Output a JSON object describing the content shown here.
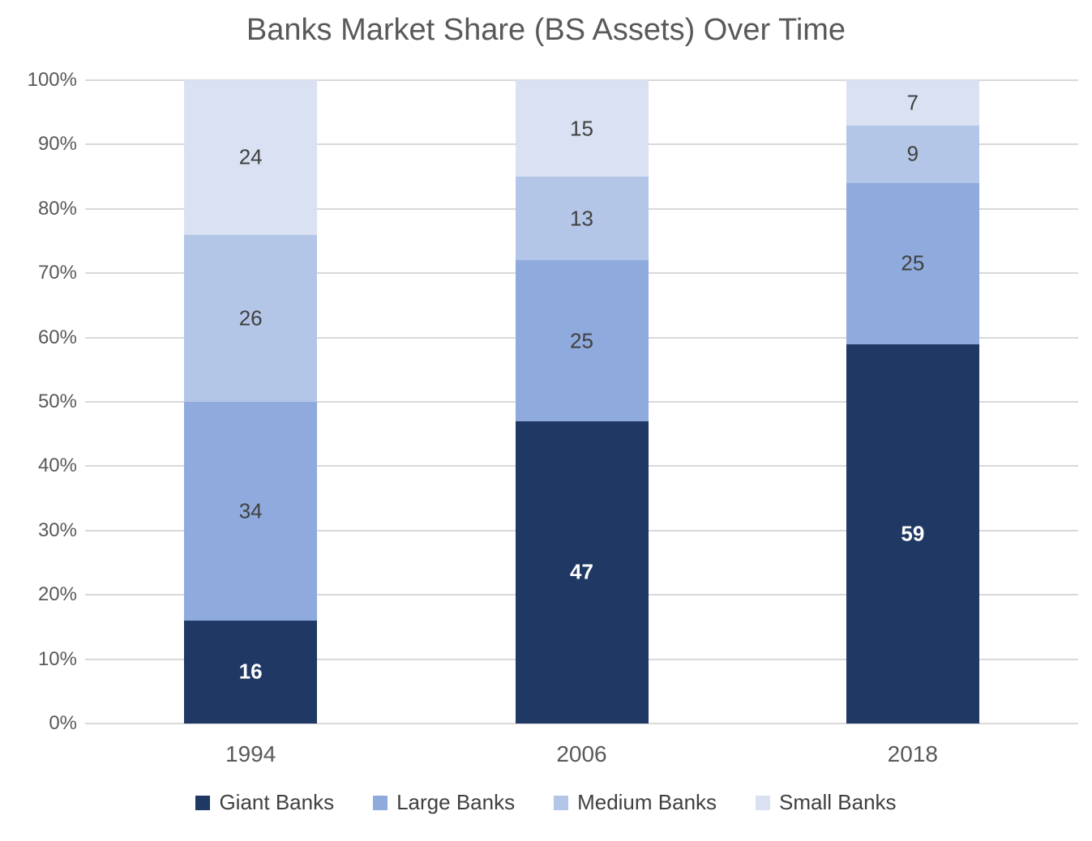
{
  "chart_data": {
    "type": "bar",
    "stacked": true,
    "percent_stacked": true,
    "title": "Banks Market Share (BS Assets) Over Time",
    "categories": [
      "1994",
      "2006",
      "2018"
    ],
    "series": [
      {
        "name": "Giant Banks",
        "color": "#203864",
        "label_color": "#FFFFFF",
        "label_bold": true,
        "values": [
          16,
          47,
          59
        ]
      },
      {
        "name": "Large Banks",
        "color": "#8FAADC",
        "label_color": "#404040",
        "label_bold": false,
        "values": [
          34,
          25,
          25
        ]
      },
      {
        "name": "Medium Banks",
        "color": "#B4C6E7",
        "label_color": "#404040",
        "label_bold": false,
        "values": [
          26,
          13,
          9
        ]
      },
      {
        "name": "Small Banks",
        "color": "#D9E1F2",
        "label_color": "#404040",
        "label_bold": false,
        "values": [
          24,
          15,
          7
        ]
      }
    ],
    "y_ticks": [
      "0%",
      "10%",
      "20%",
      "30%",
      "40%",
      "50%",
      "60%",
      "70%",
      "80%",
      "90%",
      "100%"
    ],
    "ylim": [
      0,
      100
    ],
    "grid": true,
    "grid_color": "#D9D9D9",
    "axis_text_color": "#595959",
    "legend_text_color": "#404040",
    "legend_position": "bottom"
  }
}
